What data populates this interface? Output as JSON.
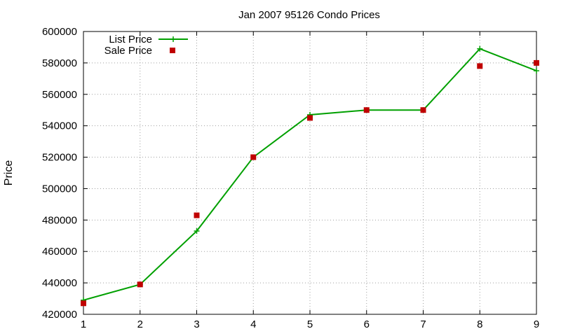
{
  "chart_data": {
    "type": "line",
    "title": "Jan 2007 95126 Condo Prices",
    "xlabel": "",
    "ylabel": "Price",
    "xlim": [
      1,
      9
    ],
    "ylim": [
      420000,
      600000
    ],
    "x_ticks": [
      "1",
      "2",
      "3",
      "4",
      "5",
      "6",
      "7",
      "8",
      "9"
    ],
    "y_ticks": [
      "420000",
      "440000",
      "460000",
      "480000",
      "500000",
      "520000",
      "540000",
      "560000",
      "580000",
      "600000"
    ],
    "grid": true,
    "legend_position": "top-left",
    "series": [
      {
        "name": "List Price",
        "style": "line-with-plus-markers",
        "color": "#00a000",
        "x": [
          1,
          2,
          3,
          4,
          5,
          6,
          7,
          8,
          9
        ],
        "y": [
          429000,
          439000,
          473000,
          520000,
          547000,
          550000,
          550000,
          589000,
          575000
        ]
      },
      {
        "name": "Sale Price",
        "style": "square-markers",
        "color": "#c00000",
        "x": [
          1,
          2,
          3,
          4,
          5,
          6,
          7,
          8,
          9
        ],
        "y": [
          427000,
          439000,
          483000,
          520000,
          545000,
          550000,
          550000,
          578000,
          580000
        ]
      }
    ]
  }
}
